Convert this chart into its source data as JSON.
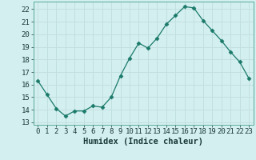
{
  "x": [
    0,
    1,
    2,
    3,
    4,
    5,
    6,
    7,
    8,
    9,
    10,
    11,
    12,
    13,
    14,
    15,
    16,
    17,
    18,
    19,
    20,
    21,
    22,
    23
  ],
  "y": [
    16.3,
    15.2,
    14.1,
    13.5,
    13.9,
    13.9,
    14.3,
    14.2,
    15.0,
    16.7,
    18.1,
    19.3,
    18.9,
    19.7,
    20.8,
    21.5,
    22.2,
    22.1,
    21.1,
    20.3,
    19.5,
    18.6,
    17.8,
    16.5
  ],
  "line_color": "#1a7a6a",
  "marker": "D",
  "marker_size": 2.5,
  "bg_color": "#d4efef",
  "grid_color": "#c0dede",
  "xlabel": "Humidex (Indice chaleur)",
  "ylim": [
    12.8,
    22.6
  ],
  "xlim": [
    -0.5,
    23.5
  ],
  "yticks": [
    13,
    14,
    15,
    16,
    17,
    18,
    19,
    20,
    21,
    22
  ],
  "xticks": [
    0,
    1,
    2,
    3,
    4,
    5,
    6,
    7,
    8,
    9,
    10,
    11,
    12,
    13,
    14,
    15,
    16,
    17,
    18,
    19,
    20,
    21,
    22,
    23
  ],
  "tick_label_fontsize": 6.5,
  "xlabel_fontsize": 7.5
}
